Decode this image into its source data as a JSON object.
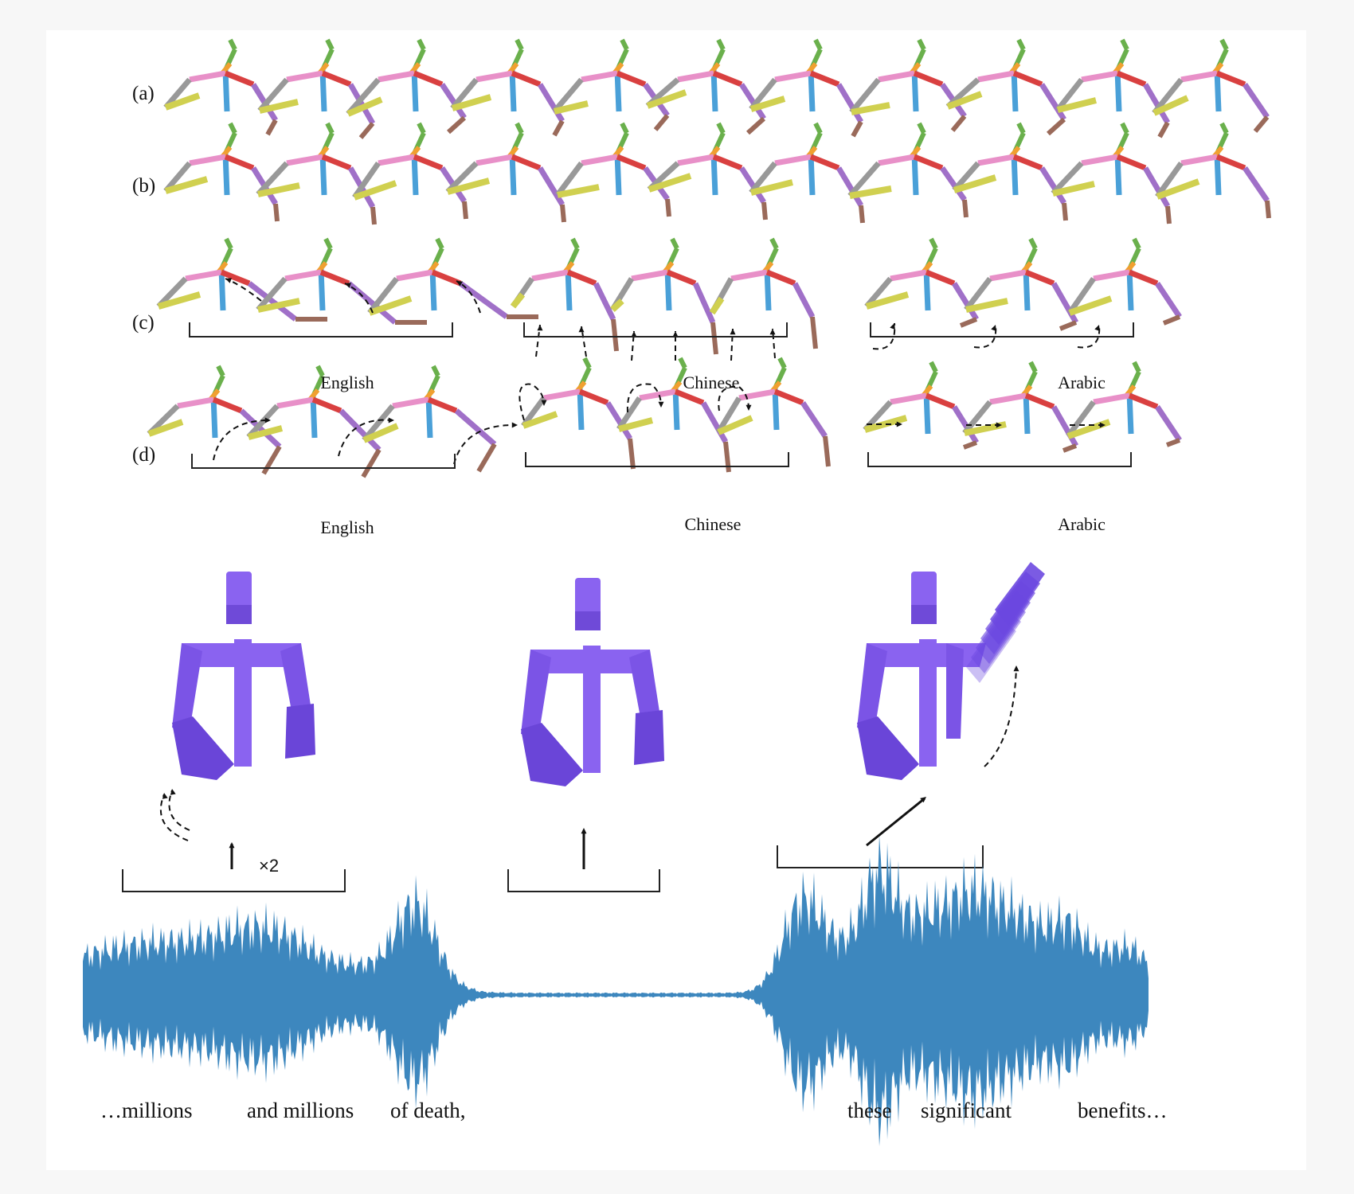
{
  "row_labels": [
    "(a)",
    "(b)",
    "(c)",
    "(d)"
  ],
  "group_labels": {
    "c": [
      "English",
      "Chinese",
      "Arabic"
    ],
    "d": [
      "English",
      "Chinese",
      "Arabic"
    ]
  },
  "multiplier": "×2",
  "words": [
    "…millions",
    "and millions",
    "of  death,",
    "these",
    "significant",
    "benefits…"
  ],
  "colors": {
    "spine": "#4aa0d8",
    "head": "#6ab04c",
    "neck": "#f0a030",
    "shoulder_left": "#e890c8",
    "shoulder_right": "#d94040",
    "upperarm_left": "#999999",
    "forearm_left": "#d0d050",
    "upperarm_right": "#a070c8",
    "hand_right": "#9a6a5a",
    "avatar": "#8a63f0",
    "waveform": "#3d87be"
  }
}
